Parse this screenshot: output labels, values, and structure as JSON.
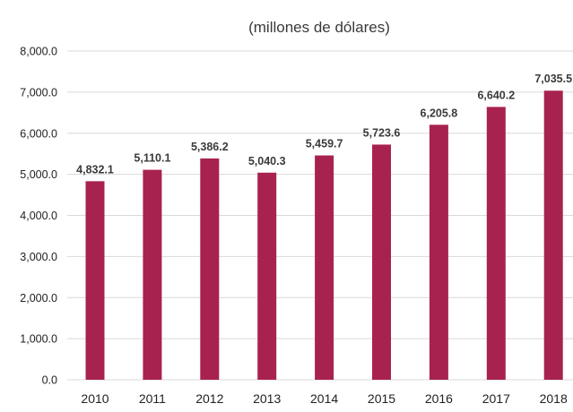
{
  "chart_data": {
    "type": "bar",
    "title": "(millones de dólares)",
    "xlabel": "",
    "ylabel": "",
    "categories": [
      "2010",
      "2011",
      "2012",
      "2013",
      "2014",
      "2015",
      "2016",
      "2017",
      "2018"
    ],
    "values": [
      4832.1,
      5110.1,
      5386.2,
      5040.3,
      5459.7,
      5723.6,
      6205.8,
      6640.2,
      7035.5
    ],
    "data_labels": [
      "4,832.1",
      "5,110.1",
      "5,386.2",
      "5,040.3",
      "5,459.7",
      "5,723.6",
      "6,205.8",
      "6,640.2",
      "7,035.5"
    ],
    "ylim": [
      0,
      8000
    ],
    "yticks": [
      0,
      1000,
      2000,
      3000,
      4000,
      5000,
      6000,
      7000,
      8000
    ],
    "ytick_labels": [
      "0.0",
      "1,000.0",
      "2,000.0",
      "3,000.0",
      "4,000.0",
      "5,000.0",
      "6,000.0",
      "7,000.0",
      "8,000.0"
    ],
    "grid": true,
    "legend": "none",
    "bar_color": "#A8224F",
    "grid_color": "#D9D9D9"
  }
}
